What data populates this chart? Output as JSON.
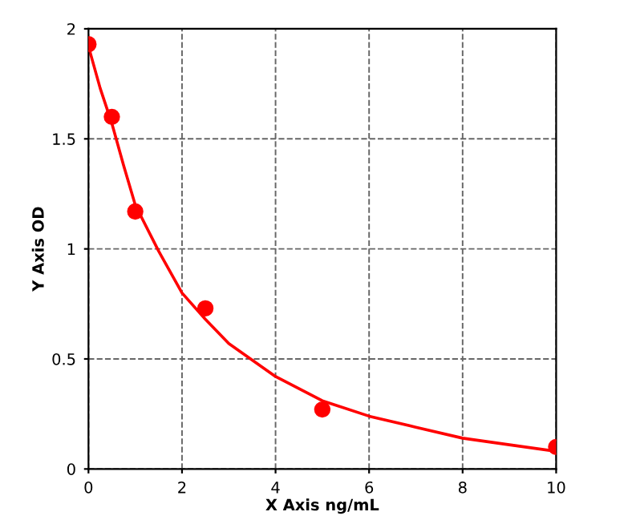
{
  "chart_data": {
    "type": "scatter",
    "xlabel": "X Axis ng/mL",
    "ylabel": "Y Axis OD",
    "xlim": [
      0,
      10
    ],
    "ylim": [
      0,
      2
    ],
    "xticks": [
      0,
      2,
      4,
      6,
      8,
      10
    ],
    "yticks": [
      0,
      0.5,
      1,
      1.5,
      2
    ],
    "grid": true,
    "legend": false,
    "series": [
      {
        "color": "#ff0000",
        "marker": "circle",
        "x": [
          0,
          0.5,
          1,
          2.5,
          5,
          10
        ],
        "values": [
          1.93,
          1.6,
          1.17,
          0.73,
          0.27,
          0.1
        ]
      },
      {
        "type": "line",
        "color": "#ff0000",
        "marker": "none",
        "line_style": "solid",
        "x": [
          0,
          0.25,
          0.5,
          0.75,
          1,
          1.5,
          2,
          2.5,
          3,
          4,
          5,
          6,
          7,
          8,
          9,
          10
        ],
        "values": [
          1.92,
          1.73,
          1.57,
          1.38,
          1.2,
          0.99,
          0.8,
          0.68,
          0.57,
          0.42,
          0.31,
          0.24,
          0.19,
          0.14,
          0.11,
          0.08
        ]
      }
    ]
  }
}
